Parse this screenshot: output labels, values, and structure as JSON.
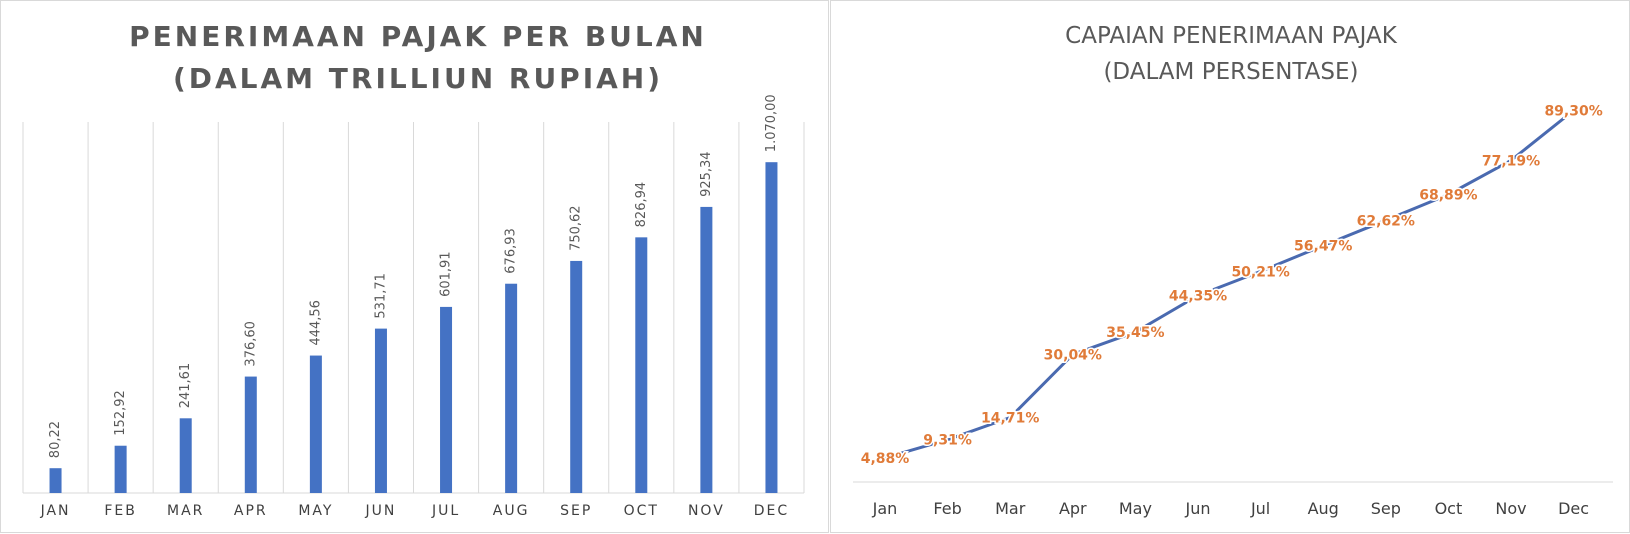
{
  "chart_data": [
    {
      "type": "bar",
      "title_lines": [
        "PENERIMAAN PAJAK PER BULAN",
        "(DALAM TRILLIUN RUPIAH)"
      ],
      "categories": [
        "JAN",
        "FEB",
        "MAR",
        "APR",
        "MAY",
        "JUN",
        "JUL",
        "AUG",
        "SEP",
        "OCT",
        "NOV",
        "DEC"
      ],
      "values": [
        80.22,
        152.92,
        241.61,
        376.6,
        444.56,
        531.71,
        601.91,
        676.93,
        750.62,
        826.94,
        925.34,
        1070.0
      ],
      "data_labels": [
        "80,22",
        "152,92",
        "241,61",
        "376,60",
        "444,56",
        "531,71",
        "601,91",
        "676,93",
        "750,62",
        "826,94",
        "925,34",
        "1.070,00"
      ],
      "ylim": [
        0,
        1200
      ],
      "xlabel": "",
      "ylabel": "",
      "grid": "vertical",
      "legend": "none",
      "bar_color": "#4472c4",
      "grid_color": "#d9d9d9"
    },
    {
      "type": "line",
      "title_lines": [
        "CAPAIAN PENERIMAAN PAJAK",
        "(DALAM PERSENTASE)"
      ],
      "categories": [
        "Jan",
        "Feb",
        "Mar",
        "Apr",
        "May",
        "Jun",
        "Jul",
        "Aug",
        "Sep",
        "Oct",
        "Nov",
        "Dec"
      ],
      "values": [
        4.88,
        9.31,
        14.71,
        30.04,
        35.45,
        44.35,
        50.21,
        56.47,
        62.62,
        68.89,
        77.19,
        89.3
      ],
      "data_labels": [
        "4,88%",
        "9,31%",
        "14,71%",
        "30,04%",
        "35,45%",
        "44,35%",
        "50,21%",
        "56,47%",
        "62,62%",
        "68,89%",
        "77,19%",
        "89,30%"
      ],
      "ylim": [
        0,
        100
      ],
      "xlabel": "",
      "ylabel": "",
      "grid": "none",
      "legend": "none",
      "line_color": "#4a6ab0",
      "label_color": "#e07b39"
    }
  ]
}
